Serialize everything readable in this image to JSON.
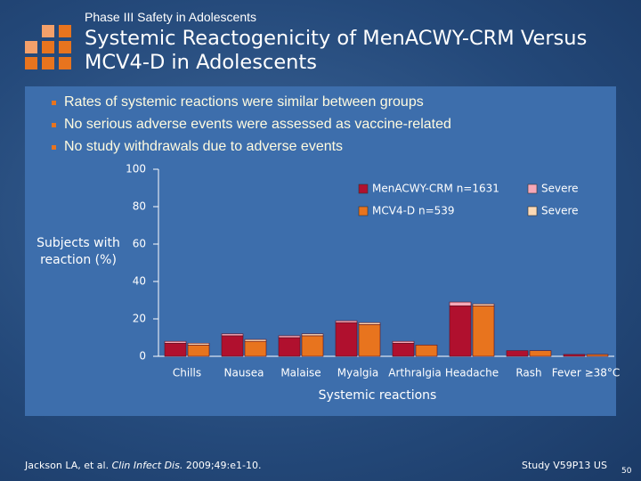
{
  "header": {
    "kicker": "Phase III Safety in Adolescents",
    "title": "Systemic Reactogenicity of MenACWY-CRM Versus MCV4-D in Adolescents"
  },
  "bullets": [
    "Rates of systemic reactions were similar between groups",
    "No serious adverse events were assessed as vaccine-related",
    "No study withdrawals due to adverse events"
  ],
  "chart_data": {
    "type": "bar",
    "stacked": true,
    "y_label": "Subjects with reaction (%)",
    "x_label": "Systemic reactions",
    "categories": [
      "Chills",
      "Nausea",
      "Malaise",
      "Myalgia",
      "Arthralgia",
      "Headache",
      "Rash",
      "Fever ≥38°C"
    ],
    "series": [
      {
        "name": "MenACWY-CRM n=1631",
        "color": "#b0102e",
        "values": [
          7,
          11,
          10,
          18,
          7,
          27,
          3,
          1
        ]
      },
      {
        "name": "Severe",
        "color": "#f6a8b8",
        "values": [
          1,
          1,
          1,
          1,
          1,
          2,
          0,
          0
        ]
      },
      {
        "name": "MCV4-D n=539",
        "color": "#e8741e",
        "values": [
          6,
          8,
          11,
          17,
          6,
          27,
          3,
          1
        ]
      },
      {
        "name": "Severe",
        "color": "#fbd9b5",
        "values": [
          1,
          1,
          1,
          1,
          0,
          1,
          0,
          0
        ]
      }
    ],
    "ylim": [
      0,
      100
    ],
    "yticks": [
      0,
      20,
      40,
      60,
      80,
      100
    ],
    "grid": false
  },
  "footer": {
    "citation_authors": "Jackson LA, et al. ",
    "citation_journal": "Clin Infect Dis.",
    "citation_ref": " 2009;49:e1-10.",
    "study": "Study V59P13 US",
    "page": "50"
  }
}
